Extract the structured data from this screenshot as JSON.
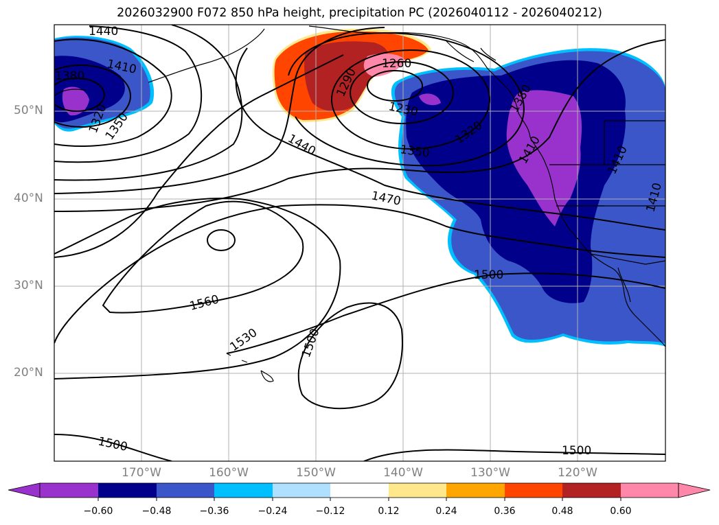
{
  "title": "2026032900 F072 850 hPa height, precipitation PC (2026040112 - 2026040212)",
  "map": {
    "projection": "cylindrical",
    "lon_range": [
      -180,
      -110
    ],
    "lat_range": [
      10,
      60
    ],
    "latitude_labels": [
      "50°N",
      "40°N",
      "30°N",
      "20°N"
    ],
    "longitude_labels": [
      "170°W",
      "160°W",
      "150°W",
      "140°W",
      "130°W",
      "120°W"
    ],
    "grid": true
  },
  "contour_labels": [
    "1440",
    "1410",
    "1380",
    "1320",
    "1350",
    "1290",
    "1260",
    "1230",
    "1320",
    "1380",
    "1440",
    "1350",
    "1410",
    "1410",
    "1410",
    "1470",
    "1500",
    "1560",
    "1530",
    "1500",
    "1500",
    "1500"
  ],
  "colorbar": {
    "ticks": [
      "−0.60",
      "−0.48",
      "−0.36",
      "−0.24",
      "−0.12",
      "0.12",
      "0.24",
      "0.36",
      "0.48",
      "0.60"
    ],
    "colors": [
      "#9932cc",
      "#00008b",
      "#3a56c8",
      "#00bfff",
      "#b0e0ff",
      "#ffffff",
      "#ffe88c",
      "#ffa500",
      "#ff4500",
      "#b22222",
      "#ff88aa"
    ]
  }
}
